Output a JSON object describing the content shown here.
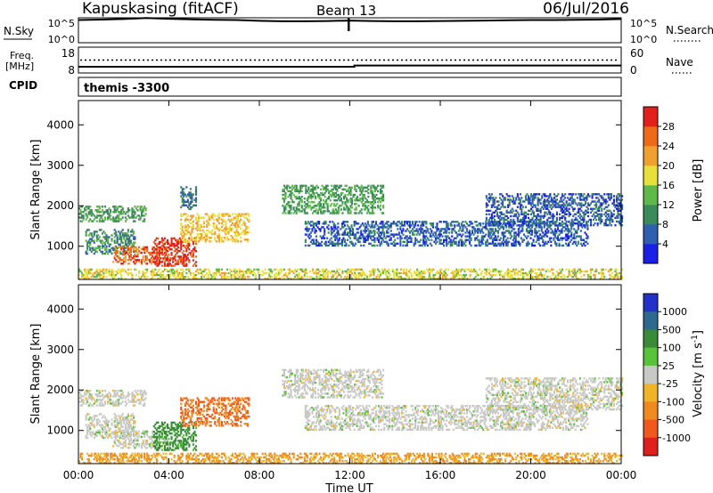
{
  "header": {
    "station": "Kapuskasing (fitACF)",
    "beam": "Beam 13",
    "date": "06/Jul/2016"
  },
  "top_panels": {
    "nsky_label": "N.Sky",
    "nsky_ticks": [
      "10^5",
      "10^0"
    ],
    "nsearch_label": "N.Search",
    "nsearch_ticks": [
      "10^5",
      "10^0"
    ],
    "freq_label_line1": "Freq.",
    "freq_label_line2": "[MHz]",
    "freq_ticks": [
      "18",
      "8"
    ],
    "nave_label": "Nave",
    "nave_ticks": [
      "60",
      "0"
    ],
    "cpid_label": "CPID",
    "cpid_value": "themis -3300"
  },
  "x_axis": {
    "title": "Time UT",
    "ticks": [
      "00:00",
      "04:00",
      "08:00",
      "12:00",
      "16:00",
      "20:00",
      "00:00"
    ]
  },
  "y_axis": {
    "title": "Slant Range [km]",
    "ticks": [
      "1000",
      "2000",
      "3000",
      "4000"
    ]
  },
  "power_colorbar": {
    "title": "Power [dB]",
    "ticks": [
      "4",
      "8",
      "12",
      "16",
      "20",
      "24",
      "28"
    ],
    "colors": [
      "#1a20e6",
      "#2f5fb0",
      "#3a8a5a",
      "#5fb84a",
      "#e8e03a",
      "#f0a030",
      "#ee6a18",
      "#e21f1a"
    ]
  },
  "velocity_colorbar": {
    "title": "Velocity [m s",
    "title_sup": "-1",
    "title_close": "]",
    "ticks": [
      "1000",
      "500",
      "100",
      "25",
      "-25",
      "-100",
      "-500",
      "-1000"
    ],
    "colors": [
      "#2431c8",
      "#2e6a8e",
      "#3b8a3a",
      "#58c23a",
      "#c8c8c4",
      "#f0b428",
      "#f08a1e",
      "#f0581e",
      "#e0201c"
    ]
  },
  "chart_data": [
    {
      "type": "line",
      "name": "N.Sky / N.Search noise",
      "x_unit": "hours UT",
      "x": [
        0,
        1,
        2,
        3,
        4,
        5,
        6,
        7,
        8,
        9,
        10,
        11,
        12,
        13,
        14,
        15,
        16,
        17,
        18,
        19,
        20,
        21,
        22,
        23,
        24
      ],
      "y_log10": [
        4.55,
        4.65,
        4.75,
        4.95,
        4.8,
        4.7,
        4.6,
        4.55,
        4.4,
        4.3,
        4.3,
        4.35,
        4.45,
        4.35,
        4.3,
        4.3,
        4.35,
        4.4,
        4.45,
        4.5,
        4.55,
        4.55,
        4.6,
        4.65,
        4.75
      ]
    },
    {
      "type": "line",
      "name": "Freq / Nave",
      "x_unit": "hours UT",
      "freq_mhz": {
        "x": [
          0,
          12.2,
          12.2,
          24
        ],
        "y": [
          10.4,
          10.4,
          10.9,
          10.9
        ]
      },
      "nave_dotted_level": 30
    },
    {
      "type": "heatmap",
      "name": "Power",
      "x_unit": "hours UT",
      "y_unit": "slant range km",
      "xlim": [
        0,
        24
      ],
      "ylim": [
        180,
        4600
      ],
      "regions": [
        {
          "t": [
            0.0,
            3.0
          ],
          "r": [
            1600,
            2000
          ],
          "power_db": 12
        },
        {
          "t": [
            0.3,
            2.5
          ],
          "r": [
            800,
            1400
          ],
          "power_db": 10
        },
        {
          "t": [
            1.5,
            4.0
          ],
          "r": [
            550,
            1000
          ],
          "power_db": 26
        },
        {
          "t": [
            3.3,
            5.2
          ],
          "r": [
            500,
            1200
          ],
          "power_db": 29
        },
        {
          "t": [
            4.5,
            7.5
          ],
          "r": [
            1100,
            1800
          ],
          "power_db": 20
        },
        {
          "t": [
            4.5,
            5.2
          ],
          "r": [
            1900,
            2450
          ],
          "power_db": 8
        },
        {
          "t": [
            9.0,
            13.5
          ],
          "r": [
            1800,
            2500
          ],
          "power_db": 12
        },
        {
          "t": [
            10.0,
            22.5
          ],
          "r": [
            1000,
            1600
          ],
          "power_db": 6
        },
        {
          "t": [
            18.0,
            24.0
          ],
          "r": [
            1500,
            2300
          ],
          "power_db": 6
        },
        {
          "t": [
            0.0,
            24.0
          ],
          "r": [
            180,
            450
          ],
          "power_db": 18
        }
      ]
    },
    {
      "type": "heatmap",
      "name": "Velocity",
      "x_unit": "hours UT",
      "y_unit": "slant range km",
      "xlim": [
        0,
        24
      ],
      "ylim": [
        180,
        4600
      ],
      "regions": [
        {
          "t": [
            0.0,
            3.0
          ],
          "r": [
            1600,
            2000
          ],
          "velocity_ms": 0
        },
        {
          "t": [
            0.3,
            2.5
          ],
          "r": [
            800,
            1400
          ],
          "velocity_ms": 0
        },
        {
          "t": [
            1.5,
            4.0
          ],
          "r": [
            550,
            1000
          ],
          "velocity_ms": 0
        },
        {
          "t": [
            3.3,
            5.2
          ],
          "r": [
            500,
            1200
          ],
          "velocity_ms": 80
        },
        {
          "t": [
            4.5,
            7.5
          ],
          "r": [
            1100,
            1800
          ],
          "velocity_ms": -300
        },
        {
          "t": [
            9.0,
            13.5
          ],
          "r": [
            1800,
            2500
          ],
          "velocity_ms": 0
        },
        {
          "t": [
            10.0,
            22.5
          ],
          "r": [
            1000,
            1600
          ],
          "velocity_ms": 0
        },
        {
          "t": [
            18.0,
            24.0
          ],
          "r": [
            1500,
            2300
          ],
          "velocity_ms": 0
        },
        {
          "t": [
            0.0,
            24.0
          ],
          "r": [
            180,
            450
          ],
          "velocity_ms": -60
        }
      ]
    }
  ]
}
